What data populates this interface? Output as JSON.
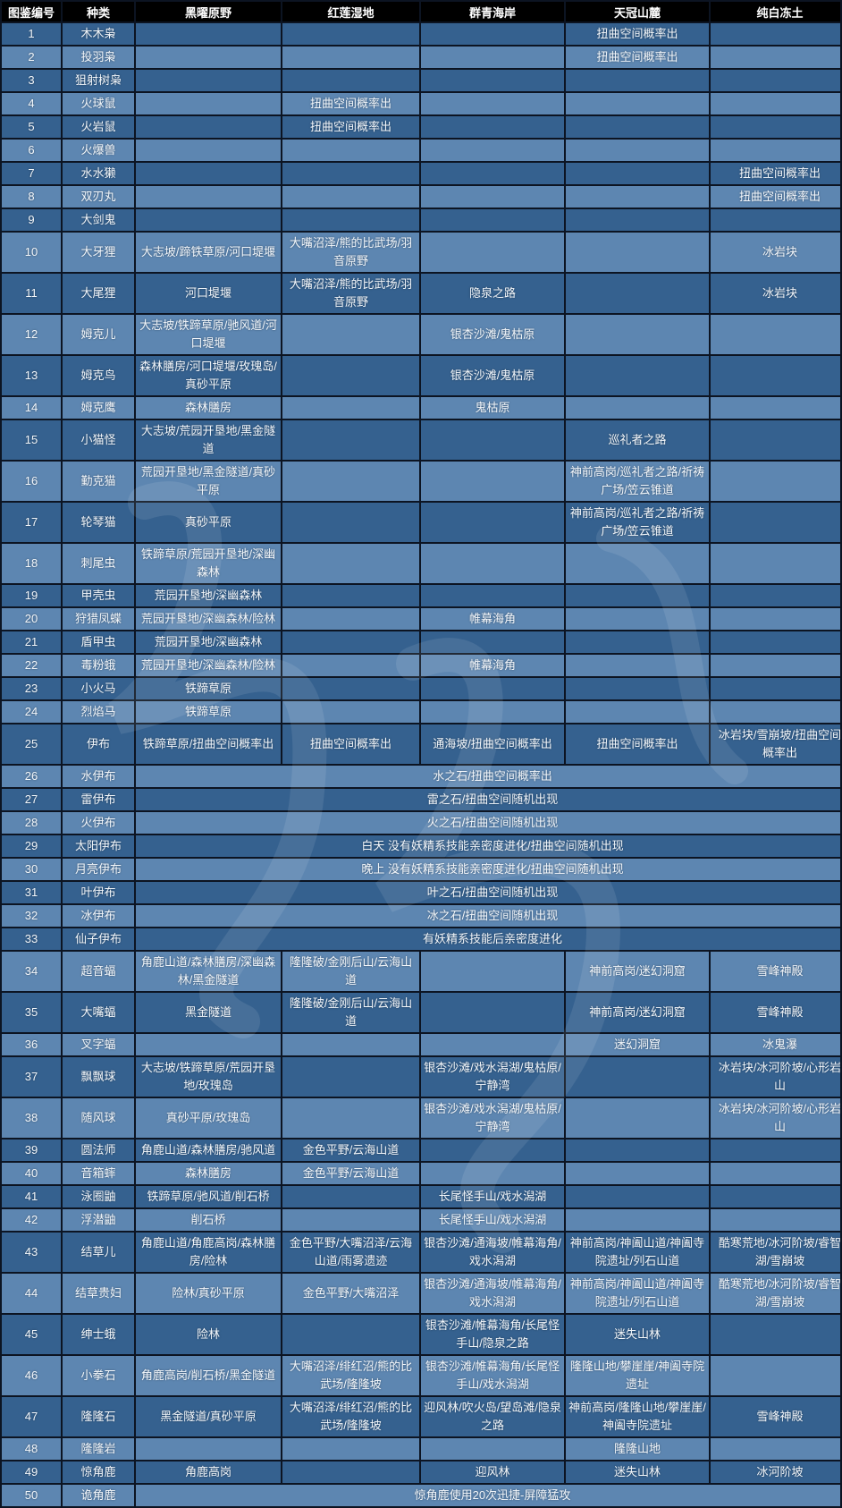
{
  "table": {
    "headers": [
      "图鉴编号",
      "种类",
      "黑曜原野",
      "红莲湿地",
      "群青海岸",
      "天冠山麓",
      "纯白冻土"
    ],
    "rows": [
      {
        "num": "1",
        "species": "木木枭",
        "cells": [
          "",
          "",
          "",
          "扭曲空间概率出",
          ""
        ]
      },
      {
        "num": "2",
        "species": "投羽枭",
        "cells": [
          "",
          "",
          "",
          "扭曲空间概率出",
          ""
        ]
      },
      {
        "num": "3",
        "species": "狙射树枭",
        "cells": [
          "",
          "",
          "",
          "",
          ""
        ]
      },
      {
        "num": "4",
        "species": "火球鼠",
        "cells": [
          "",
          "扭曲空间概率出",
          "",
          "",
          ""
        ]
      },
      {
        "num": "5",
        "species": "火岩鼠",
        "cells": [
          "",
          "扭曲空间概率出",
          "",
          "",
          ""
        ]
      },
      {
        "num": "6",
        "species": "火爆兽",
        "cells": [
          "",
          "",
          "",
          "",
          ""
        ]
      },
      {
        "num": "7",
        "species": "水水獭",
        "cells": [
          "",
          "",
          "",
          "",
          "扭曲空间概率出"
        ]
      },
      {
        "num": "8",
        "species": "双刃丸",
        "cells": [
          "",
          "",
          "",
          "",
          "扭曲空间概率出"
        ]
      },
      {
        "num": "9",
        "species": "大剑鬼",
        "cells": [
          "",
          "",
          "",
          "",
          ""
        ]
      },
      {
        "num": "10",
        "species": "大牙狸",
        "cells": [
          "大志坡/蹄铁草原/河口堤堰",
          "大嘴沼泽/熊的比武场/羽音原野",
          "",
          "",
          "冰岩块"
        ]
      },
      {
        "num": "11",
        "species": "大尾狸",
        "cells": [
          "河口堤堰",
          "大嘴沼泽/熊的比武场/羽音原野",
          "隐泉之路",
          "",
          "冰岩块"
        ]
      },
      {
        "num": "12",
        "species": "姆克儿",
        "cells": [
          "大志坡/铁蹄草原/驰风道/河口堤堰",
          "",
          "银杏沙滩/鬼枯原",
          "",
          ""
        ]
      },
      {
        "num": "13",
        "species": "姆克鸟",
        "cells": [
          "森林膳房/河口堤堰/玫瑰岛/真砂平原",
          "",
          "银杏沙滩/鬼枯原",
          "",
          ""
        ]
      },
      {
        "num": "14",
        "species": "姆克鹰",
        "cells": [
          "森林膳房",
          "",
          "鬼枯原",
          "",
          ""
        ]
      },
      {
        "num": "15",
        "species": "小猫怪",
        "cells": [
          "大志坡/荒园开垦地/黑金隧道",
          "",
          "",
          "巡礼者之路",
          ""
        ]
      },
      {
        "num": "16",
        "species": "勤克猫",
        "cells": [
          "荒园开垦地/黑金隧道/真砂平原",
          "",
          "",
          "神前高岗/巡礼者之路/祈祷广场/笠云锥道",
          ""
        ]
      },
      {
        "num": "17",
        "species": "轮琴猫",
        "cells": [
          "真砂平原",
          "",
          "",
          "神前高岗/巡礼者之路/祈祷广场/笠云锥道",
          ""
        ]
      },
      {
        "num": "18",
        "species": "刺尾虫",
        "cells": [
          "铁蹄草原/荒园开垦地/深幽森林",
          "",
          "",
          "",
          ""
        ]
      },
      {
        "num": "19",
        "species": "甲壳虫",
        "cells": [
          "荒园开垦地/深幽森林",
          "",
          "",
          "",
          ""
        ]
      },
      {
        "num": "20",
        "species": "狩猎凤蝶",
        "cells": [
          "荒园开垦地/深幽森林/险林",
          "",
          "帷幕海角",
          "",
          ""
        ]
      },
      {
        "num": "21",
        "species": "盾甲虫",
        "cells": [
          "荒园开垦地/深幽森林",
          "",
          "",
          "",
          ""
        ]
      },
      {
        "num": "22",
        "species": "毒粉蛾",
        "cells": [
          "荒园开垦地/深幽森林/险林",
          "",
          "帷幕海角",
          "",
          ""
        ]
      },
      {
        "num": "23",
        "species": "小火马",
        "cells": [
          "铁蹄草原",
          "",
          "",
          "",
          ""
        ]
      },
      {
        "num": "24",
        "species": "烈焰马",
        "cells": [
          "铁蹄草原",
          "",
          "",
          "",
          ""
        ]
      },
      {
        "num": "25",
        "species": "伊布",
        "cells": [
          "铁蹄草原/扭曲空间概率出",
          "扭曲空间概率出",
          "通海坡/扭曲空间概率出",
          "扭曲空间概率出",
          "冰岩块/雪崩坡/扭曲空间概率出"
        ]
      },
      {
        "num": "26",
        "species": "水伊布",
        "merged": "水之石/扭曲空间概率出"
      },
      {
        "num": "27",
        "species": "雷伊布",
        "merged": "雷之石/扭曲空间随机出现"
      },
      {
        "num": "28",
        "species": "火伊布",
        "merged": "火之石/扭曲空间随机出现"
      },
      {
        "num": "29",
        "species": "太阳伊布",
        "merged": "白天 没有妖精系技能亲密度进化/扭曲空间随机出现"
      },
      {
        "num": "30",
        "species": "月亮伊布",
        "merged": "晚上 没有妖精系技能亲密度进化/扭曲空间随机出现"
      },
      {
        "num": "31",
        "species": "叶伊布",
        "merged": "叶之石/扭曲空间随机出现"
      },
      {
        "num": "32",
        "species": "冰伊布",
        "merged": "冰之石/扭曲空间随机出现"
      },
      {
        "num": "33",
        "species": "仙子伊布",
        "merged": "有妖精系技能后亲密度进化"
      },
      {
        "num": "34",
        "species": "超音蝠",
        "cells": [
          "角鹿山道/森林膳房/深幽森林/黑金隧道",
          "隆隆破/金刚后山/云海山道",
          "",
          "神前高岗/迷幻洞窟",
          "雪峰神殿"
        ]
      },
      {
        "num": "35",
        "species": "大嘴蝠",
        "cells": [
          "黑金隧道",
          "隆隆破/金刚后山/云海山道",
          "",
          "神前高岗/迷幻洞窟",
          "雪峰神殿"
        ]
      },
      {
        "num": "36",
        "species": "叉字蝠",
        "cells": [
          "",
          "",
          "",
          "迷幻洞窟",
          "冰鬼瀑"
        ]
      },
      {
        "num": "37",
        "species": "飘飘球",
        "cells": [
          "大志坡/铁蹄草原/荒园开垦地/玫瑰岛",
          "",
          "银杏沙滩/戏水潟湖/鬼枯原/宁静湾",
          "",
          "冰岩块/冰河阶坡/心形岩山"
        ]
      },
      {
        "num": "38",
        "species": "随风球",
        "cells": [
          "真砂平原/玫瑰岛",
          "",
          "银杏沙滩/戏水潟湖/鬼枯原/宁静湾",
          "",
          "冰岩块/冰河阶坡/心形岩山"
        ]
      },
      {
        "num": "39",
        "species": "圆法师",
        "cells": [
          "角鹿山道/森林膳房/驰风道",
          "金色平野/云海山道",
          "",
          "",
          ""
        ]
      },
      {
        "num": "40",
        "species": "音箱蟀",
        "cells": [
          "森林膳房",
          "金色平野/云海山道",
          "",
          "",
          ""
        ]
      },
      {
        "num": "41",
        "species": "泳圈鼬",
        "cells": [
          "铁蹄草原/驰风道/削石桥",
          "",
          "长尾怪手山/戏水潟湖",
          "",
          ""
        ]
      },
      {
        "num": "42",
        "species": "浮潜鼬",
        "cells": [
          "削石桥",
          "",
          "长尾怪手山/戏水潟湖",
          "",
          ""
        ]
      },
      {
        "num": "43",
        "species": "结草儿",
        "cells": [
          "角鹿山道/角鹿高岗/森林膳房/险林",
          "金色平野/大嘴沼泽/云海山道/雨雾遗迹",
          "银杏沙滩/通海坡/帷幕海角/戏水潟湖",
          "神前高岗/神阖山道/神阖寺院遗址/列石山道",
          "酷寒荒地/冰河阶坡/睿智湖/雪崩坡"
        ]
      },
      {
        "num": "44",
        "species": "结草贵妇",
        "cells": [
          "险林/真砂平原",
          "金色平野/大嘴沼泽",
          "银杏沙滩/通海坡/帷幕海角/戏水潟湖",
          "神前高岗/神阖山道/神阖寺院遗址/列石山道",
          "酷寒荒地/冰河阶坡/睿智湖/雪崩坡"
        ]
      },
      {
        "num": "45",
        "species": "绅士蛾",
        "cells": [
          "险林",
          "",
          "银杏沙滩/帷幕海角/长尾怪手山/隐泉之路",
          "迷失山林",
          ""
        ]
      },
      {
        "num": "46",
        "species": "小拳石",
        "cells": [
          "角鹿高岗/削石桥/黑金隧道",
          "大嘴沼泽/绯红沼/熊的比武场/隆隆坡",
          "银杏沙滩/帷幕海角/长尾怪手山/戏水潟湖",
          "隆隆山地/攀崖崖/神阖寺院遗址",
          ""
        ]
      },
      {
        "num": "47",
        "species": "隆隆石",
        "cells": [
          "黑金隧道/真砂平原",
          "大嘴沼泽/绯红沼/熊的比武场/隆隆坡",
          "迎风林/吹火岛/望岛滩/隐泉之路",
          "神前高岗/隆隆山地/攀崖崖/神阖寺院遗址",
          "雪峰神殿"
        ]
      },
      {
        "num": "48",
        "species": "隆隆岩",
        "cells": [
          "",
          "",
          "",
          "隆隆山地",
          ""
        ]
      },
      {
        "num": "49",
        "species": "惊角鹿",
        "cells": [
          "角鹿高岗",
          "",
          "迎风林",
          "迷失山林",
          "冰河阶坡"
        ]
      },
      {
        "num": "50",
        "species": "诡角鹿",
        "merged": "惊角鹿使用20次迅捷-屏障猛攻"
      }
    ]
  },
  "colors": {
    "header_bg": "#000000",
    "row_dark": "#35618f",
    "row_light": "#5d86b1",
    "border": "#0c1422",
    "text": "#ffffff"
  }
}
